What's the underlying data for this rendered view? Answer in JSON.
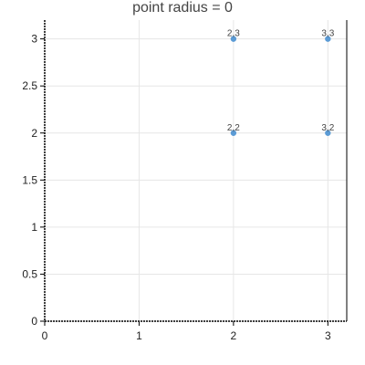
{
  "chart_data": {
    "type": "scatter",
    "title": "point radius = 0",
    "xlabel": "",
    "ylabel": "",
    "xlim": [
      0,
      3.2
    ],
    "ylim": [
      0,
      3.2
    ],
    "x_ticks": [
      "0",
      "1",
      "2",
      "3"
    ],
    "y_ticks": [
      "0",
      "0.5",
      "1",
      "1.5",
      "2",
      "2.5",
      "3"
    ],
    "grid": true,
    "series": [
      {
        "color": "#5b9bd5",
        "points": [
          {
            "x": 2,
            "y": 3,
            "label": "2,3"
          },
          {
            "x": 3,
            "y": 3,
            "label": "3,3"
          },
          {
            "x": 2,
            "y": 2,
            "label": "2,2"
          },
          {
            "x": 3,
            "y": 2,
            "label": "3,2"
          }
        ]
      }
    ]
  }
}
